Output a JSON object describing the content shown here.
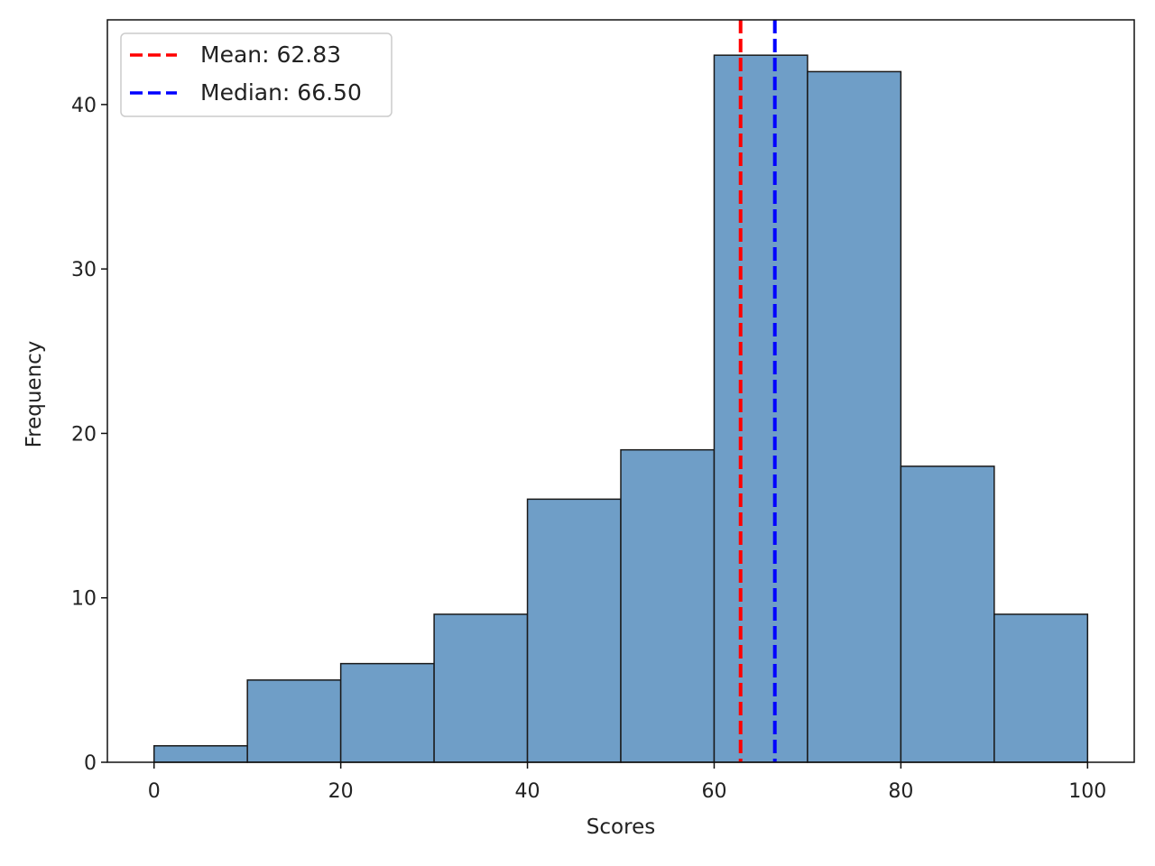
{
  "chart_data": {
    "type": "bar",
    "subtype": "histogram",
    "title": "",
    "xlabel": "Scores",
    "ylabel": "Frequency",
    "xlim": [
      -5,
      105
    ],
    "ylim": [
      0,
      45.15
    ],
    "bin_edges": [
      0,
      10,
      20,
      30,
      40,
      50,
      60,
      70,
      80,
      90,
      100
    ],
    "values": [
      1,
      5,
      6,
      9,
      16,
      19,
      43,
      42,
      18,
      9
    ],
    "bar_color": "#6f9ec7",
    "edge_color": "#1a1a1a",
    "xticks": [
      0,
      20,
      40,
      60,
      80,
      100
    ],
    "xtick_labels": [
      "0",
      "20",
      "40",
      "60",
      "80",
      "100"
    ],
    "yticks": [
      0,
      10,
      20,
      30,
      40
    ],
    "ytick_labels": [
      "0",
      "10",
      "20",
      "30",
      "40"
    ],
    "grid": false,
    "vlines": [
      {
        "name": "mean",
        "x": 62.83,
        "color": "#ff0000",
        "style": "dashed",
        "label": "Mean: 62.83"
      },
      {
        "name": "median",
        "x": 66.5,
        "color": "#0000ff",
        "style": "dashed",
        "label": "Median: 66.50"
      }
    ],
    "legend": {
      "placement": "top-left"
    }
  }
}
